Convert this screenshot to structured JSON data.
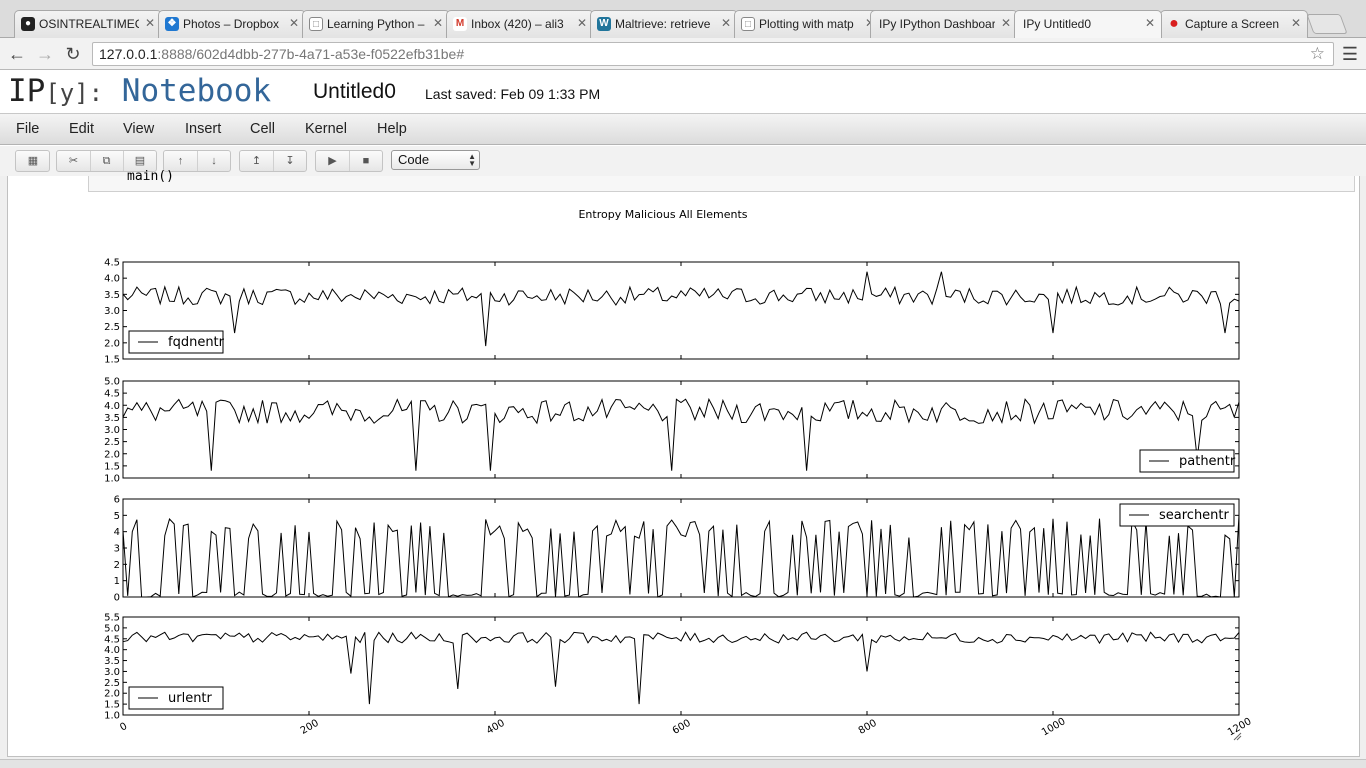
{
  "browser": {
    "tabs": [
      {
        "title": "OSINTREALTIMEC",
        "icon": "github-icon",
        "color": "#222222",
        "active": false
      },
      {
        "title": "Photos – Dropbox",
        "icon": "dropbox-icon",
        "color": "#1f78d1",
        "active": false
      },
      {
        "title": "Learning Python –",
        "icon": "document-icon",
        "color": "#888888",
        "active": false
      },
      {
        "title": "Inbox (420) – ali3",
        "icon": "gmail-icon",
        "color": "#d33a2c",
        "active": false
      },
      {
        "title": "Maltrieve: retrieve",
        "icon": "wordpress-icon",
        "color": "#21759b",
        "active": false
      },
      {
        "title": "Plotting with matp",
        "icon": "document-icon",
        "color": "#888888",
        "active": false
      },
      {
        "title": "IPy IPython Dashboard",
        "icon": "",
        "color": "",
        "active": false
      },
      {
        "title": "IPy Untitled0",
        "icon": "",
        "color": "",
        "active": true
      },
      {
        "title": "Capture a Screen",
        "icon": "record-icon",
        "color": "#d81e1e",
        "active": false
      }
    ],
    "url_host": "127.0.0.1",
    "url_rest": ":8888/602d4dbb-277b-4a71-a53e-f0522efb31be#"
  },
  "notebook": {
    "logo_ip": "IP",
    "logo_y": "[y]:",
    "logo_nb": "Notebook",
    "name": "Untitled0",
    "last_saved": "Last saved: Feb 09 1:33 PM"
  },
  "menubar": [
    "File",
    "Edit",
    "View",
    "Insert",
    "Cell",
    "Kernel",
    "Help"
  ],
  "toolbar": {
    "icons": [
      "save-icon",
      "cut-icon",
      "copy-icon",
      "paste-icon",
      "move-up-icon",
      "move-down-icon",
      "insert-above-icon",
      "insert-below-icon",
      "run-icon",
      "stop-icon"
    ],
    "cell_type": "Code"
  },
  "cell": {
    "code_tail": "main()"
  },
  "chart_data": {
    "type": "line",
    "title": "Entropy Malicious All Elements",
    "x_ticks": [
      "0",
      "200",
      "400",
      "600",
      "800",
      "1000",
      "1200"
    ],
    "xlim": [
      0,
      1200
    ],
    "subplots": [
      {
        "name": "fqdnentr",
        "legend": "bottom-left",
        "ylim": [
          1.5,
          4.5
        ],
        "y_ticks": [
          "1.5",
          "2.0",
          "2.5",
          "3.0",
          "3.5",
          "4.0",
          "4.5"
        ],
        "mean": 3.45,
        "spread": 0.28,
        "sample_every": 5,
        "spikes": [
          [
            12,
            2.6
          ],
          [
            120,
            2.3
          ],
          [
            390,
            1.9
          ],
          [
            800,
            4.2
          ],
          [
            880,
            4.2
          ],
          [
            1000,
            2.3
          ],
          [
            1185,
            2.3
          ]
        ]
      },
      {
        "name": "pathentr",
        "legend": "bottom-right",
        "ylim": [
          1.0,
          5.0
        ],
        "y_ticks": [
          "1.0",
          "1.5",
          "2.0",
          "2.5",
          "3.0",
          "3.5",
          "4.0",
          "4.5",
          "5.0"
        ],
        "mean": 3.75,
        "spread": 0.5,
        "sample_every": 5,
        "spikes": [
          [
            95,
            1.3
          ],
          [
            315,
            1.3
          ],
          [
            395,
            1.3
          ],
          [
            590,
            1.3
          ],
          [
            735,
            1.3
          ],
          [
            1155,
            1.8
          ]
        ]
      },
      {
        "name": "searchentr",
        "legend": "top-right",
        "ylim": [
          0,
          6
        ],
        "y_ticks": [
          "0",
          "1",
          "2",
          "3",
          "4",
          "5",
          "6"
        ],
        "mean": 2.5,
        "spread": 2.5,
        "sample_every": 5,
        "spikes": [
          [
            1180,
            0
          ],
          [
            1200,
            5
          ]
        ]
      },
      {
        "name": "urlentr",
        "legend": "bottom-left",
        "ylim": [
          1.0,
          5.5
        ],
        "y_ticks": [
          "1.0",
          "1.5",
          "2.0",
          "2.5",
          "3.0",
          "3.5",
          "4.0",
          "4.5",
          "5.0",
          "5.5"
        ],
        "mean": 4.55,
        "spread": 0.25,
        "sample_every": 5,
        "spikes": [
          [
            245,
            2.9
          ],
          [
            265,
            1.5
          ],
          [
            360,
            2.2
          ],
          [
            465,
            2.3
          ],
          [
            555,
            1.5
          ],
          [
            800,
            3.0
          ]
        ]
      }
    ]
  }
}
